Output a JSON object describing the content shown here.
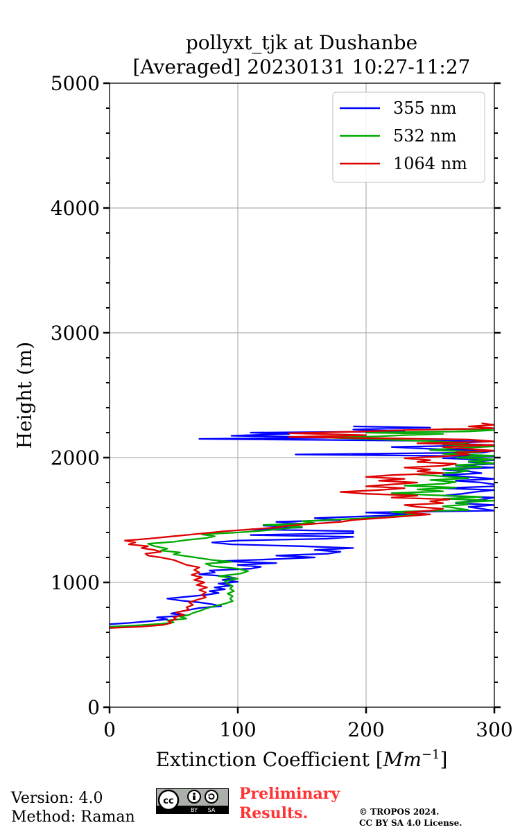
{
  "chart_data": {
    "type": "line",
    "title_line1": "pollyxt_tjk at Dushanbe",
    "title_line2": "[Averaged] 20230131 10:27-11:27",
    "xlabel": "Extinction Coefficient [Mm⁻¹]",
    "xlabel_main": "Extinction Coefficient [",
    "xlabel_unit": "Mm",
    "xlabel_exp": "−1",
    "xlabel_close": "]",
    "ylabel": "Height (m)",
    "xlim": [
      0,
      300
    ],
    "ylim": [
      0,
      5000
    ],
    "xticks": [
      0,
      100,
      200,
      300
    ],
    "xtick_labels": [
      "0",
      "100",
      "200",
      "300"
    ],
    "yticks": [
      0,
      1000,
      2000,
      3000,
      4000,
      5000
    ],
    "ytick_labels": [
      "0",
      "1000",
      "2000",
      "3000",
      "4000",
      "5000"
    ],
    "grid": true,
    "legend_position": "top-right",
    "series": [
      {
        "name": "355 nm",
        "color": "#0000ff",
        "points": [
          [
            0,
            665
          ],
          [
            15,
            675
          ],
          [
            32,
            690
          ],
          [
            45,
            705
          ],
          [
            37,
            720
          ],
          [
            60,
            735
          ],
          [
            48,
            750
          ],
          [
            55,
            765
          ],
          [
            62,
            780
          ],
          [
            70,
            795
          ],
          [
            87,
            810
          ],
          [
            80,
            825
          ],
          [
            70,
            840
          ],
          [
            55,
            855
          ],
          [
            45,
            870
          ],
          [
            60,
            885
          ],
          [
            75,
            900
          ],
          [
            85,
            915
          ],
          [
            78,
            930
          ],
          [
            90,
            945
          ],
          [
            82,
            960
          ],
          [
            95,
            975
          ],
          [
            85,
            990
          ],
          [
            100,
            1005
          ],
          [
            88,
            1020
          ],
          [
            98,
            1035
          ],
          [
            90,
            1050
          ],
          [
            70,
            1065
          ],
          [
            82,
            1080
          ],
          [
            78,
            1095
          ],
          [
            110,
            1110
          ],
          [
            118,
            1125
          ],
          [
            100,
            1140
          ],
          [
            130,
            1155
          ],
          [
            85,
            1170
          ],
          [
            125,
            1185
          ],
          [
            160,
            1200
          ],
          [
            130,
            1215
          ],
          [
            170,
            1230
          ],
          [
            180,
            1245
          ],
          [
            160,
            1260
          ],
          [
            190,
            1275
          ],
          [
            150,
            1290
          ],
          [
            95,
            1305
          ],
          [
            80,
            1320
          ],
          [
            100,
            1335
          ],
          [
            170,
            1350
          ],
          [
            190,
            1365
          ],
          [
            110,
            1380
          ],
          [
            190,
            1395
          ],
          [
            190,
            1410
          ],
          [
            110,
            1425
          ],
          [
            150,
            1440
          ],
          [
            120,
            1455
          ],
          [
            150,
            1470
          ],
          [
            130,
            1485
          ],
          [
            180,
            1500
          ],
          [
            160,
            1515
          ],
          [
            200,
            1530
          ],
          [
            240,
            1545
          ],
          [
            200,
            1560
          ],
          [
            300,
            1575
          ],
          [
            290,
            1590
          ],
          [
            280,
            1605
          ],
          [
            300,
            1620
          ],
          [
            270,
            1635
          ],
          [
            280,
            1650
          ],
          [
            290,
            1665
          ],
          [
            300,
            1680
          ],
          [
            260,
            1695
          ],
          [
            275,
            1710
          ],
          [
            285,
            1725
          ],
          [
            300,
            1740
          ],
          [
            260,
            1755
          ],
          [
            300,
            1770
          ],
          [
            300,
            1785
          ],
          [
            290,
            1800
          ],
          [
            270,
            1815
          ],
          [
            300,
            1830
          ],
          [
            280,
            1845
          ],
          [
            260,
            1860
          ],
          [
            290,
            1875
          ],
          [
            280,
            1890
          ],
          [
            260,
            1905
          ],
          [
            300,
            1920
          ],
          [
            270,
            1935
          ],
          [
            300,
            1950
          ],
          [
            280,
            1965
          ],
          [
            300,
            1980
          ],
          [
            260,
            1995
          ],
          [
            300,
            2010
          ],
          [
            145,
            2025
          ],
          [
            290,
            2040
          ],
          [
            300,
            2055
          ],
          [
            250,
            2070
          ],
          [
            220,
            2085
          ],
          [
            300,
            2100
          ],
          [
            260,
            2115
          ],
          [
            300,
            2130
          ],
          [
            70,
            2150
          ],
          [
            180,
            2160
          ],
          [
            95,
            2175
          ],
          [
            140,
            2190
          ],
          [
            110,
            2200
          ],
          [
            230,
            2210
          ],
          [
            190,
            2225
          ],
          [
            250,
            2240
          ],
          [
            190,
            2250
          ]
        ]
      },
      {
        "name": "532 nm",
        "color": "#00aa00",
        "points": [
          [
            0,
            645
          ],
          [
            20,
            655
          ],
          [
            40,
            668
          ],
          [
            50,
            680
          ],
          [
            45,
            695
          ],
          [
            60,
            710
          ],
          [
            55,
            725
          ],
          [
            62,
            740
          ],
          [
            65,
            755
          ],
          [
            70,
            770
          ],
          [
            75,
            790
          ],
          [
            82,
            810
          ],
          [
            90,
            830
          ],
          [
            96,
            850
          ],
          [
            94,
            870
          ],
          [
            96,
            890
          ],
          [
            92,
            910
          ],
          [
            97,
            930
          ],
          [
            94,
            950
          ],
          [
            96,
            970
          ],
          [
            92,
            990
          ],
          [
            90,
            1010
          ],
          [
            100,
            1030
          ],
          [
            85,
            1050
          ],
          [
            102,
            1070
          ],
          [
            108,
            1090
          ],
          [
            100,
            1110
          ],
          [
            80,
            1130
          ],
          [
            75,
            1150
          ],
          [
            95,
            1165
          ],
          [
            80,
            1180
          ],
          [
            70,
            1195
          ],
          [
            60,
            1210
          ],
          [
            50,
            1225
          ],
          [
            55,
            1240
          ],
          [
            40,
            1255
          ],
          [
            45,
            1270
          ],
          [
            35,
            1290
          ],
          [
            30,
            1310
          ],
          [
            50,
            1325
          ],
          [
            60,
            1340
          ],
          [
            75,
            1355
          ],
          [
            82,
            1370
          ],
          [
            72,
            1385
          ],
          [
            100,
            1400
          ],
          [
            120,
            1415
          ],
          [
            135,
            1430
          ],
          [
            150,
            1445
          ],
          [
            120,
            1460
          ],
          [
            160,
            1475
          ],
          [
            150,
            1490
          ],
          [
            180,
            1505
          ],
          [
            210,
            1520
          ],
          [
            230,
            1535
          ],
          [
            240,
            1550
          ],
          [
            220,
            1565
          ],
          [
            280,
            1580
          ],
          [
            270,
            1595
          ],
          [
            260,
            1610
          ],
          [
            280,
            1625
          ],
          [
            270,
            1640
          ],
          [
            300,
            1655
          ],
          [
            260,
            1670
          ],
          [
            290,
            1685
          ],
          [
            250,
            1700
          ],
          [
            220,
            1715
          ],
          [
            260,
            1730
          ],
          [
            240,
            1745
          ],
          [
            270,
            1760
          ],
          [
            230,
            1775
          ],
          [
            260,
            1790
          ],
          [
            270,
            1805
          ],
          [
            250,
            1820
          ],
          [
            280,
            1835
          ],
          [
            260,
            1850
          ],
          [
            240,
            1865
          ],
          [
            270,
            1880
          ],
          [
            280,
            1895
          ],
          [
            260,
            1910
          ],
          [
            290,
            1925
          ],
          [
            270,
            1940
          ],
          [
            300,
            1955
          ],
          [
            280,
            1970
          ],
          [
            300,
            1985
          ],
          [
            270,
            2000
          ],
          [
            300,
            2015
          ],
          [
            260,
            2030
          ],
          [
            290,
            2045
          ],
          [
            250,
            2060
          ],
          [
            270,
            2075
          ],
          [
            300,
            2090
          ],
          [
            260,
            2105
          ],
          [
            280,
            2120
          ],
          [
            240,
            2135
          ],
          [
            200,
            2150
          ],
          [
            170,
            2160
          ],
          [
            210,
            2170
          ],
          [
            230,
            2180
          ],
          [
            260,
            2190
          ],
          [
            200,
            2200
          ],
          [
            280,
            2210
          ],
          [
            300,
            2220
          ],
          [
            260,
            2230
          ]
        ]
      },
      {
        "name": "1064 nm",
        "color": "#dd0000",
        "points": [
          [
            0,
            635
          ],
          [
            25,
            645
          ],
          [
            42,
            660
          ],
          [
            48,
            675
          ],
          [
            46,
            690
          ],
          [
            52,
            705
          ],
          [
            50,
            720
          ],
          [
            58,
            740
          ],
          [
            52,
            760
          ],
          [
            62,
            780
          ],
          [
            60,
            800
          ],
          [
            65,
            820
          ],
          [
            62,
            840
          ],
          [
            68,
            860
          ],
          [
            75,
            880
          ],
          [
            72,
            900
          ],
          [
            75,
            920
          ],
          [
            70,
            940
          ],
          [
            76,
            960
          ],
          [
            68,
            980
          ],
          [
            74,
            1000
          ],
          [
            66,
            1020
          ],
          [
            72,
            1040
          ],
          [
            64,
            1060
          ],
          [
            70,
            1080
          ],
          [
            66,
            1100
          ],
          [
            70,
            1120
          ],
          [
            60,
            1140
          ],
          [
            55,
            1160
          ],
          [
            50,
            1180
          ],
          [
            40,
            1200
          ],
          [
            30,
            1215
          ],
          [
            28,
            1230
          ],
          [
            40,
            1245
          ],
          [
            35,
            1260
          ],
          [
            25,
            1275
          ],
          [
            30,
            1290
          ],
          [
            15,
            1305
          ],
          [
            20,
            1320
          ],
          [
            12,
            1335
          ],
          [
            30,
            1350
          ],
          [
            45,
            1365
          ],
          [
            60,
            1380
          ],
          [
            75,
            1395
          ],
          [
            90,
            1410
          ],
          [
            110,
            1425
          ],
          [
            130,
            1440
          ],
          [
            140,
            1455
          ],
          [
            160,
            1470
          ],
          [
            180,
            1485
          ],
          [
            190,
            1500
          ],
          [
            210,
            1515
          ],
          [
            230,
            1530
          ],
          [
            250,
            1545
          ],
          [
            230,
            1560
          ],
          [
            250,
            1575
          ],
          [
            260,
            1590
          ],
          [
            240,
            1605
          ],
          [
            230,
            1620
          ],
          [
            260,
            1635
          ],
          [
            250,
            1650
          ],
          [
            265,
            1665
          ],
          [
            220,
            1680
          ],
          [
            240,
            1695
          ],
          [
            200,
            1710
          ],
          [
            180,
            1725
          ],
          [
            210,
            1740
          ],
          [
            230,
            1755
          ],
          [
            200,
            1770
          ],
          [
            220,
            1785
          ],
          [
            240,
            1800
          ],
          [
            210,
            1815
          ],
          [
            230,
            1830
          ],
          [
            200,
            1845
          ],
          [
            220,
            1860
          ],
          [
            260,
            1875
          ],
          [
            240,
            1890
          ],
          [
            250,
            1905
          ],
          [
            230,
            1920
          ],
          [
            260,
            1935
          ],
          [
            270,
            1950
          ],
          [
            240,
            1965
          ],
          [
            250,
            1980
          ],
          [
            230,
            1995
          ],
          [
            260,
            2010
          ],
          [
            280,
            2025
          ],
          [
            270,
            2040
          ],
          [
            300,
            2055
          ],
          [
            280,
            2070
          ],
          [
            260,
            2085
          ],
          [
            300,
            2100
          ],
          [
            240,
            2115
          ],
          [
            300,
            2130
          ],
          [
            280,
            2145
          ],
          [
            140,
            2165
          ],
          [
            200,
            2180
          ],
          [
            140,
            2195
          ],
          [
            200,
            2210
          ],
          [
            230,
            2220
          ],
          [
            300,
            2235
          ],
          [
            280,
            2250
          ],
          [
            300,
            2262
          ],
          [
            290,
            2275
          ]
        ]
      }
    ]
  },
  "footer": {
    "version": "Version: 4.0",
    "method": "Method: Raman",
    "preliminary_line1": "Preliminary",
    "preliminary_line2": "Results.",
    "copyright_line1": "© TROPOS 2024.",
    "copyright_line2": "CC BY SA 4.0 License.",
    "license_badge_label": "CC BY SA",
    "license_badge_by": "BY",
    "license_badge_sa": "SA"
  }
}
